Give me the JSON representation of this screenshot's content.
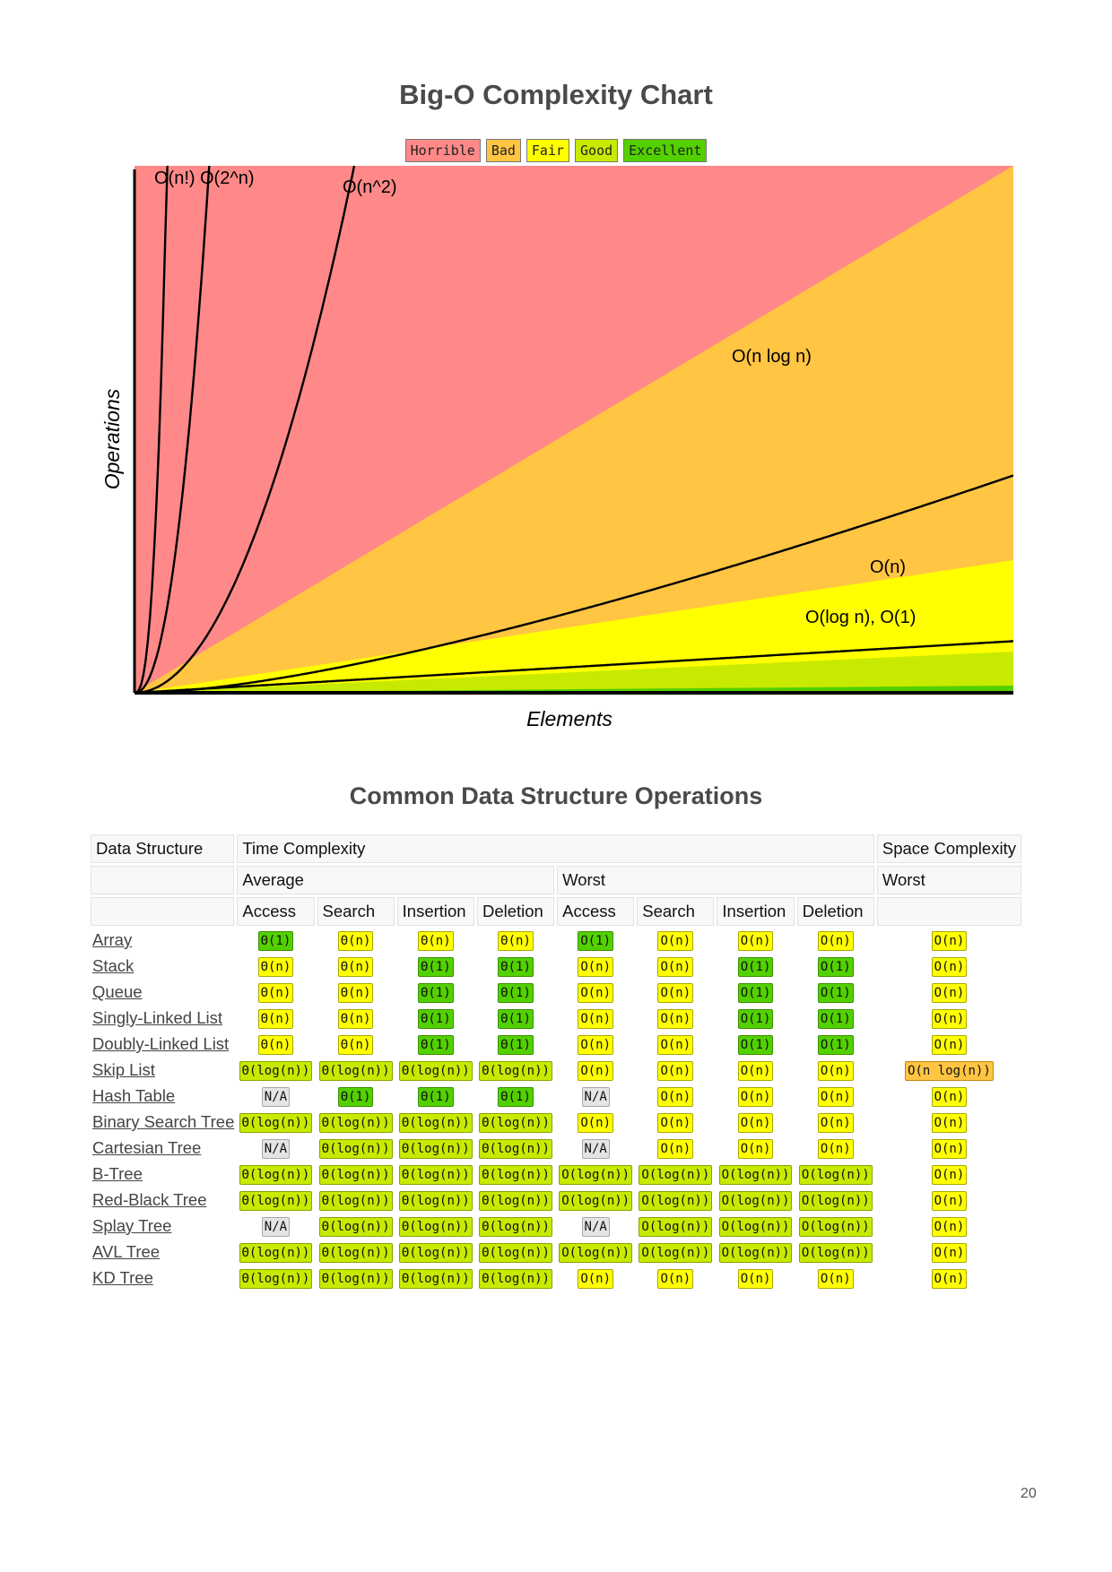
{
  "chart_title": "Big-O Complexity Chart",
  "legend": [
    {
      "label": "Horrible",
      "color": "#ff8989"
    },
    {
      "label": "Bad",
      "color": "#ffc543"
    },
    {
      "label": "Fair",
      "color": "#ffff00"
    },
    {
      "label": "Good",
      "color": "#c8ea00"
    },
    {
      "label": "Excellent",
      "color": "#53d000"
    }
  ],
  "chart_data": {
    "type": "line",
    "xlabel": "Elements",
    "ylabel": "Operations",
    "grid": false,
    "series": [
      {
        "name": "O(n!)"
      },
      {
        "name": "O(2^n)"
      },
      {
        "name": "O(n^2)"
      },
      {
        "name": "O(n log n)"
      },
      {
        "name": "O(n)"
      },
      {
        "name": "O(log n), O(1)"
      }
    ]
  },
  "table_title": "Common Data Structure Operations",
  "table": {
    "header": {
      "data_structure": "Data Structure",
      "time_complexity": "Time Complexity",
      "space_complexity": "Space Complexity",
      "average": "Average",
      "worst": "Worst",
      "space_worst": "Worst",
      "ops": [
        "Access",
        "Search",
        "Insertion",
        "Deletion",
        "Access",
        "Search",
        "Insertion",
        "Deletion"
      ]
    },
    "rows": [
      {
        "name": "Array",
        "cells": [
          [
            "Θ(1)",
            "excellent"
          ],
          [
            "Θ(n)",
            "fair"
          ],
          [
            "Θ(n)",
            "fair"
          ],
          [
            "Θ(n)",
            "fair"
          ],
          [
            "O(1)",
            "excellent"
          ],
          [
            "O(n)",
            "fair"
          ],
          [
            "O(n)",
            "fair"
          ],
          [
            "O(n)",
            "fair"
          ],
          [
            "O(n)",
            "fair"
          ]
        ]
      },
      {
        "name": "Stack",
        "cells": [
          [
            "Θ(n)",
            "fair"
          ],
          [
            "Θ(n)",
            "fair"
          ],
          [
            "Θ(1)",
            "excellent"
          ],
          [
            "Θ(1)",
            "excellent"
          ],
          [
            "O(n)",
            "fair"
          ],
          [
            "O(n)",
            "fair"
          ],
          [
            "O(1)",
            "excellent"
          ],
          [
            "O(1)",
            "excellent"
          ],
          [
            "O(n)",
            "fair"
          ]
        ]
      },
      {
        "name": "Queue",
        "cells": [
          [
            "Θ(n)",
            "fair"
          ],
          [
            "Θ(n)",
            "fair"
          ],
          [
            "Θ(1)",
            "excellent"
          ],
          [
            "Θ(1)",
            "excellent"
          ],
          [
            "O(n)",
            "fair"
          ],
          [
            "O(n)",
            "fair"
          ],
          [
            "O(1)",
            "excellent"
          ],
          [
            "O(1)",
            "excellent"
          ],
          [
            "O(n)",
            "fair"
          ]
        ]
      },
      {
        "name": "Singly-Linked List",
        "cells": [
          [
            "Θ(n)",
            "fair"
          ],
          [
            "Θ(n)",
            "fair"
          ],
          [
            "Θ(1)",
            "excellent"
          ],
          [
            "Θ(1)",
            "excellent"
          ],
          [
            "O(n)",
            "fair"
          ],
          [
            "O(n)",
            "fair"
          ],
          [
            "O(1)",
            "excellent"
          ],
          [
            "O(1)",
            "excellent"
          ],
          [
            "O(n)",
            "fair"
          ]
        ]
      },
      {
        "name": "Doubly-Linked List",
        "cells": [
          [
            "Θ(n)",
            "fair"
          ],
          [
            "Θ(n)",
            "fair"
          ],
          [
            "Θ(1)",
            "excellent"
          ],
          [
            "Θ(1)",
            "excellent"
          ],
          [
            "O(n)",
            "fair"
          ],
          [
            "O(n)",
            "fair"
          ],
          [
            "O(1)",
            "excellent"
          ],
          [
            "O(1)",
            "excellent"
          ],
          [
            "O(n)",
            "fair"
          ]
        ]
      },
      {
        "name": "Skip List",
        "cells": [
          [
            "Θ(log(n))",
            "good"
          ],
          [
            "Θ(log(n))",
            "good"
          ],
          [
            "Θ(log(n))",
            "good"
          ],
          [
            "Θ(log(n))",
            "good"
          ],
          [
            "O(n)",
            "fair"
          ],
          [
            "O(n)",
            "fair"
          ],
          [
            "O(n)",
            "fair"
          ],
          [
            "O(n)",
            "fair"
          ],
          [
            "O(n log(n))",
            "bad"
          ]
        ]
      },
      {
        "name": "Hash Table",
        "cells": [
          [
            "N/A",
            "na"
          ],
          [
            "Θ(1)",
            "excellent"
          ],
          [
            "Θ(1)",
            "excellent"
          ],
          [
            "Θ(1)",
            "excellent"
          ],
          [
            "N/A",
            "na"
          ],
          [
            "O(n)",
            "fair"
          ],
          [
            "O(n)",
            "fair"
          ],
          [
            "O(n)",
            "fair"
          ],
          [
            "O(n)",
            "fair"
          ]
        ]
      },
      {
        "name": "Binary Search Tree",
        "cells": [
          [
            "Θ(log(n))",
            "good"
          ],
          [
            "Θ(log(n))",
            "good"
          ],
          [
            "Θ(log(n))",
            "good"
          ],
          [
            "Θ(log(n))",
            "good"
          ],
          [
            "O(n)",
            "fair"
          ],
          [
            "O(n)",
            "fair"
          ],
          [
            "O(n)",
            "fair"
          ],
          [
            "O(n)",
            "fair"
          ],
          [
            "O(n)",
            "fair"
          ]
        ]
      },
      {
        "name": "Cartesian Tree",
        "cells": [
          [
            "N/A",
            "na"
          ],
          [
            "Θ(log(n))",
            "good"
          ],
          [
            "Θ(log(n))",
            "good"
          ],
          [
            "Θ(log(n))",
            "good"
          ],
          [
            "N/A",
            "na"
          ],
          [
            "O(n)",
            "fair"
          ],
          [
            "O(n)",
            "fair"
          ],
          [
            "O(n)",
            "fair"
          ],
          [
            "O(n)",
            "fair"
          ]
        ]
      },
      {
        "name": "B-Tree",
        "cells": [
          [
            "Θ(log(n))",
            "good"
          ],
          [
            "Θ(log(n))",
            "good"
          ],
          [
            "Θ(log(n))",
            "good"
          ],
          [
            "Θ(log(n))",
            "good"
          ],
          [
            "O(log(n))",
            "good"
          ],
          [
            "O(log(n))",
            "good"
          ],
          [
            "O(log(n))",
            "good"
          ],
          [
            "O(log(n))",
            "good"
          ],
          [
            "O(n)",
            "fair"
          ]
        ]
      },
      {
        "name": "Red-Black Tree",
        "cells": [
          [
            "Θ(log(n))",
            "good"
          ],
          [
            "Θ(log(n))",
            "good"
          ],
          [
            "Θ(log(n))",
            "good"
          ],
          [
            "Θ(log(n))",
            "good"
          ],
          [
            "O(log(n))",
            "good"
          ],
          [
            "O(log(n))",
            "good"
          ],
          [
            "O(log(n))",
            "good"
          ],
          [
            "O(log(n))",
            "good"
          ],
          [
            "O(n)",
            "fair"
          ]
        ]
      },
      {
        "name": "Splay Tree",
        "cells": [
          [
            "N/A",
            "na"
          ],
          [
            "Θ(log(n))",
            "good"
          ],
          [
            "Θ(log(n))",
            "good"
          ],
          [
            "Θ(log(n))",
            "good"
          ],
          [
            "N/A",
            "na"
          ],
          [
            "O(log(n))",
            "good"
          ],
          [
            "O(log(n))",
            "good"
          ],
          [
            "O(log(n))",
            "good"
          ],
          [
            "O(n)",
            "fair"
          ]
        ]
      },
      {
        "name": "AVL Tree",
        "cells": [
          [
            "Θ(log(n))",
            "good"
          ],
          [
            "Θ(log(n))",
            "good"
          ],
          [
            "Θ(log(n))",
            "good"
          ],
          [
            "Θ(log(n))",
            "good"
          ],
          [
            "O(log(n))",
            "good"
          ],
          [
            "O(log(n))",
            "good"
          ],
          [
            "O(log(n))",
            "good"
          ],
          [
            "O(log(n))",
            "good"
          ],
          [
            "O(n)",
            "fair"
          ]
        ]
      },
      {
        "name": "KD Tree",
        "cells": [
          [
            "Θ(log(n))",
            "good"
          ],
          [
            "Θ(log(n))",
            "good"
          ],
          [
            "Θ(log(n))",
            "good"
          ],
          [
            "Θ(log(n))",
            "good"
          ],
          [
            "O(n)",
            "fair"
          ],
          [
            "O(n)",
            "fair"
          ],
          [
            "O(n)",
            "fair"
          ],
          [
            "O(n)",
            "fair"
          ],
          [
            "O(n)",
            "fair"
          ]
        ]
      }
    ]
  },
  "page_number": "20"
}
